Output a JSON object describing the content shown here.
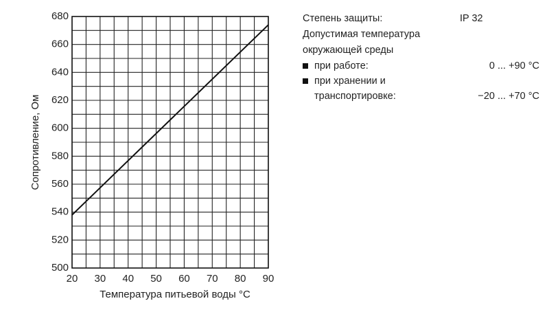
{
  "chart_data": {
    "type": "line",
    "x_label": "Температура питьевой воды °C",
    "y_label": "Сопротивление, Ом",
    "x": [
      20,
      90
    ],
    "series": [
      {
        "color": "#111111",
        "values": [
          538,
          674
        ]
      }
    ],
    "xlim": [
      20,
      90
    ],
    "xticks": [
      20,
      30,
      40,
      50,
      60,
      70,
      80,
      90
    ],
    "ylim": [
      500,
      680
    ],
    "yticks": [
      500,
      520,
      540,
      560,
      580,
      600,
      620,
      640,
      660,
      680
    ],
    "grid": true,
    "minor_grid": true
  },
  "specs": {
    "protection": {
      "label": "Степень защиты:",
      "value": "IP 32"
    },
    "heading": [
      "Допустимая температура",
      "окружающей среды"
    ],
    "items": [
      {
        "label": [
          "при работе:"
        ],
        "value": "0 ... +90 °C"
      },
      {
        "label": [
          "при хранении и",
          "транспортировке:"
        ],
        "value": "−20 ... +70 °C"
      }
    ]
  }
}
